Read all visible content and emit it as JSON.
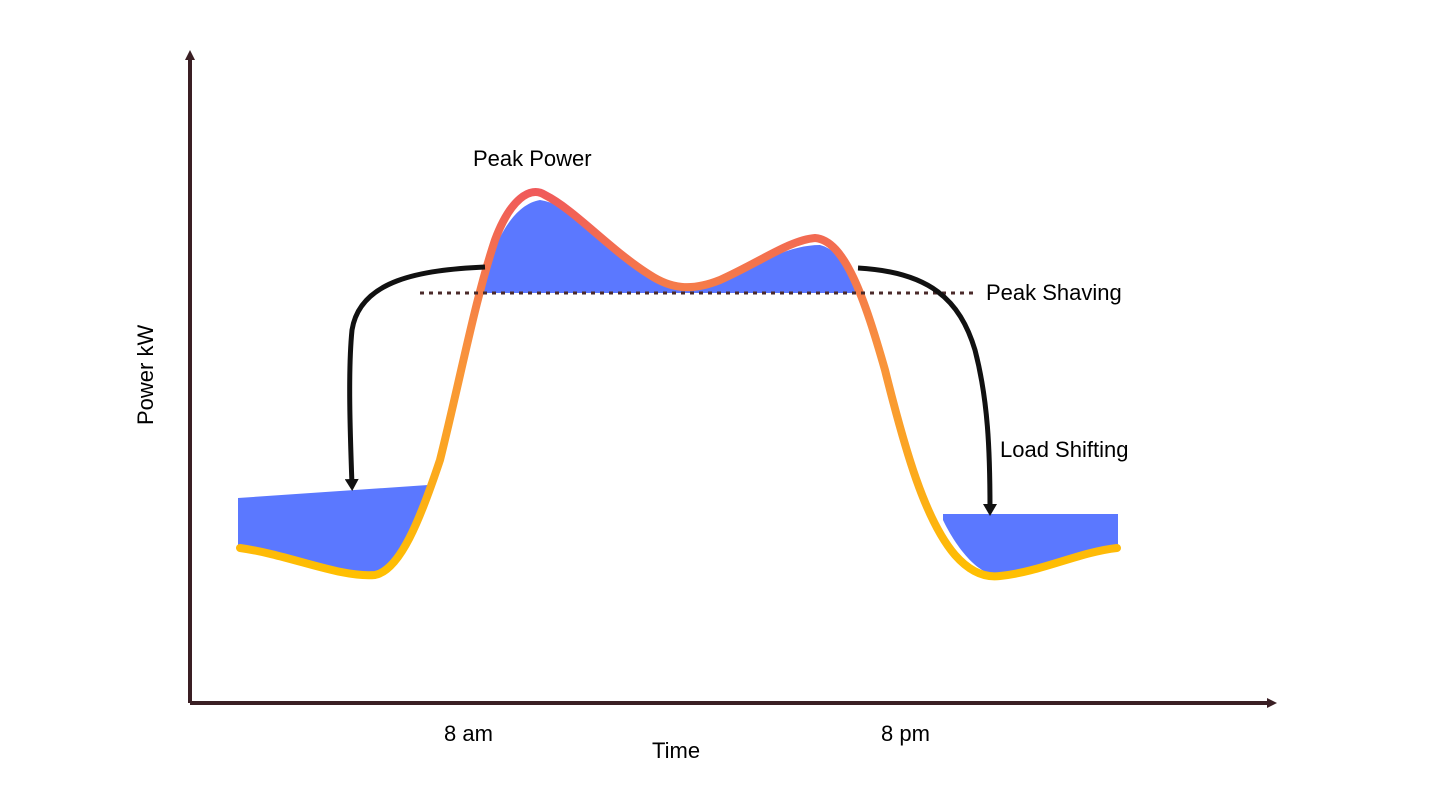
{
  "title_labels": {
    "peak_power": "Peak Power",
    "peak_shaving": "Peak Shaving",
    "load_shifting": "Load Shifting"
  },
  "axes": {
    "y_label": "Power kW",
    "x_label": "Time",
    "x_ticks": [
      "8 am",
      "8 pm"
    ]
  },
  "colors": {
    "axis": "#3a1f24",
    "fill": "#5b78ff",
    "curve_top": "#f05a5a",
    "curve_mid": "#f8903f",
    "curve_bottom": "#ffc000",
    "arrow": "#111111",
    "threshold": "#4a2a2a"
  }
}
